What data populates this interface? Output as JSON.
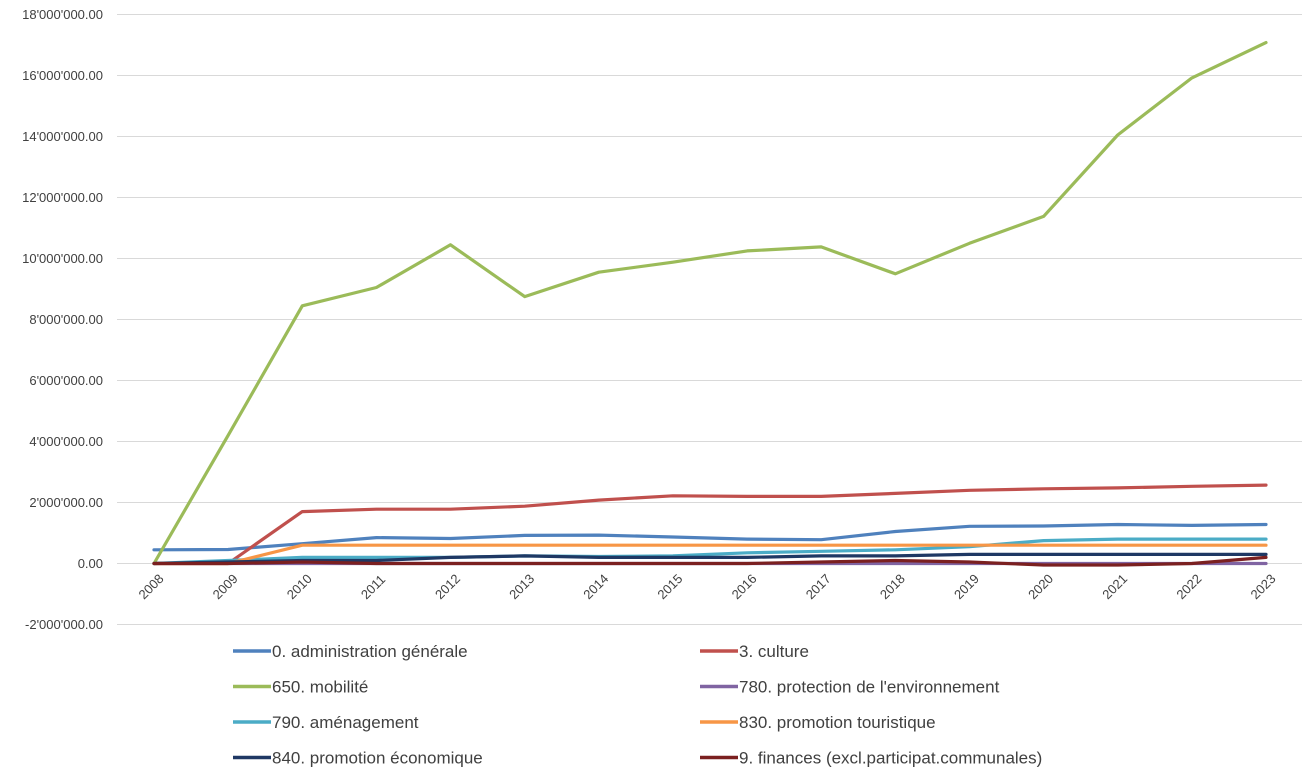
{
  "chart_data": {
    "type": "line",
    "title": "",
    "xlabel": "",
    "ylabel": "",
    "ylim": [
      -2000000,
      18000000
    ],
    "ytick_step": 2000000,
    "grid": true,
    "legend_position": "bottom",
    "y_tick_labels": [
      "-2'000'000.00",
      "0.00",
      "2'000'000.00",
      "4'000'000.00",
      "6'000'000.00",
      "8'000'000.00",
      "10'000'000.00",
      "12'000'000.00",
      "14'000'000.00",
      "16'000'000.00",
      "18'000'000.00"
    ],
    "categories": [
      "2008",
      "2009",
      "2010",
      "2011",
      "2012",
      "2013",
      "2014",
      "2015",
      "2016",
      "2017",
      "2018",
      "2019",
      "2020",
      "2021",
      "2022",
      "2023"
    ],
    "series": [
      {
        "name": "0. administration générale",
        "color": "#4f81bd",
        "values": [
          450000,
          460000,
          650000,
          850000,
          820000,
          920000,
          930000,
          870000,
          800000,
          780000,
          1050000,
          1220000,
          1230000,
          1280000,
          1250000,
          1280000
        ]
      },
      {
        "name": "3. culture",
        "color": "#c0504d",
        "values": [
          0,
          0,
          1700000,
          1780000,
          1780000,
          1880000,
          2080000,
          2220000,
          2200000,
          2200000,
          2300000,
          2400000,
          2450000,
          2480000,
          2530000,
          2570000
        ]
      },
      {
        "name": "650. mobilité",
        "color": "#9bbb59",
        "values": [
          0,
          4200000,
          8450000,
          9050000,
          10450000,
          8750000,
          9550000,
          9880000,
          10250000,
          10380000,
          9500000,
          10500000,
          11380000,
          14050000,
          15920000,
          17080000
        ]
      },
      {
        "name": "780. protection de l'environnement",
        "color": "#8064a2",
        "values": [
          0,
          0,
          0,
          0,
          0,
          0,
          0,
          0,
          0,
          0,
          0,
          0,
          0,
          0,
          0,
          0
        ]
      },
      {
        "name": "790. aménagement",
        "color": "#4bacc6",
        "values": [
          0,
          100000,
          200000,
          200000,
          200000,
          250000,
          230000,
          250000,
          350000,
          400000,
          450000,
          550000,
          750000,
          800000,
          800000,
          800000
        ]
      },
      {
        "name": "830. promotion touristique",
        "color": "#f79646",
        "values": [
          0,
          0,
          600000,
          600000,
          600000,
          600000,
          600000,
          600000,
          600000,
          600000,
          600000,
          600000,
          600000,
          600000,
          600000,
          600000
        ]
      },
      {
        "name": "840. promotion économique",
        "color": "#1f3864",
        "values": [
          0,
          50000,
          100000,
          100000,
          200000,
          250000,
          200000,
          200000,
          200000,
          250000,
          250000,
          300000,
          300000,
          300000,
          300000,
          300000
        ]
      },
      {
        "name": "9. finances (excl.participat.communales)",
        "color": "#7b2020",
        "values": [
          0,
          0,
          50000,
          0,
          0,
          0,
          0,
          0,
          0,
          50000,
          100000,
          50000,
          -50000,
          -50000,
          0,
          200000
        ]
      }
    ]
  }
}
